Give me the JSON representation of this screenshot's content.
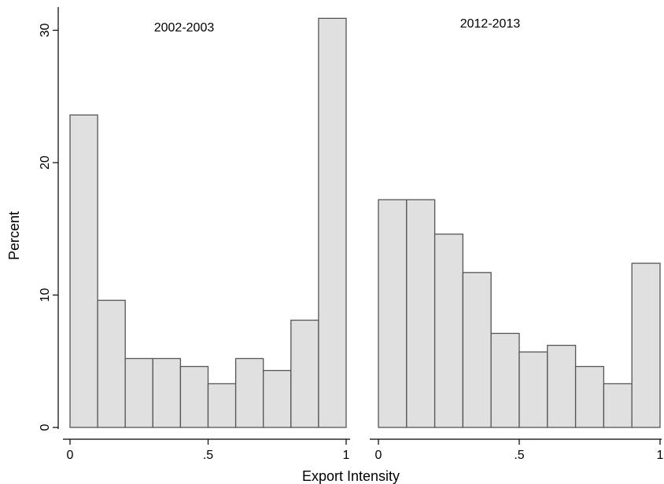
{
  "chart_data": {
    "type": "bar",
    "subtype": "histogram",
    "xlabel": "Export Intensity",
    "ylabel": "Percent",
    "xlim": [
      0,
      1
    ],
    "ylim": [
      0,
      31
    ],
    "x_ticks": [
      {
        "value": 0,
        "label": "0"
      },
      {
        "value": 0.5,
        "label": ".5"
      },
      {
        "value": 1,
        "label": "1"
      }
    ],
    "y_ticks": [
      {
        "value": 0,
        "label": "0"
      },
      {
        "value": 10,
        "label": "10"
      },
      {
        "value": 20,
        "label": "20"
      },
      {
        "value": 30,
        "label": "30"
      }
    ],
    "grid": false,
    "bar_fill": "#e0e0e0",
    "bar_edge": "#555555",
    "panels": [
      {
        "title": "2002-2003",
        "bin_start": 0,
        "bin_width": 0.1,
        "values": [
          23.6,
          9.6,
          5.2,
          5.2,
          4.6,
          3.3,
          5.2,
          4.3,
          8.1,
          30.9
        ]
      },
      {
        "title": "2012-2013",
        "bin_start": 0,
        "bin_width": 0.1,
        "values": [
          17.2,
          17.2,
          14.6,
          11.7,
          7.1,
          5.7,
          6.2,
          4.6,
          3.3,
          12.4
        ]
      }
    ]
  }
}
